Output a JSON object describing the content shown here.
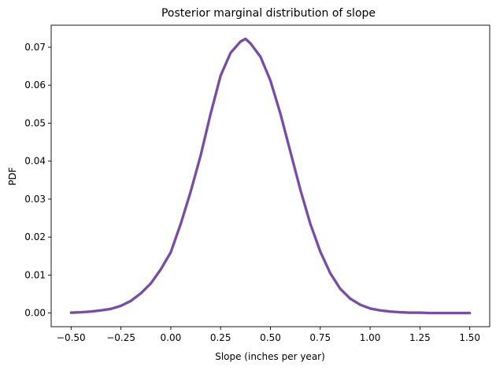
{
  "chart_data": {
    "type": "line",
    "title": "Posterior marginal distribution of slope",
    "xlabel": "Slope (inches per year)",
    "ylabel": "PDF",
    "xlim": [
      -0.6,
      1.6
    ],
    "ylim": [
      -0.0036,
      0.0758
    ],
    "xticks": [
      -0.5,
      -0.25,
      0.0,
      0.25,
      0.5,
      0.75,
      1.0,
      1.25,
      1.5
    ],
    "xtick_labels": [
      "−0.50",
      "−0.25",
      "0.00",
      "0.25",
      "0.50",
      "0.75",
      "1.00",
      "1.25",
      "1.50"
    ],
    "yticks": [
      0.0,
      0.01,
      0.02,
      0.03,
      0.04,
      0.05,
      0.06,
      0.07
    ],
    "ytick_labels": [
      "0.00",
      "0.01",
      "0.02",
      "0.03",
      "0.04",
      "0.05",
      "0.06",
      "0.07"
    ],
    "grid": false,
    "colors": {
      "line": "#7b4aa4",
      "line_under": "#5f7fa0"
    },
    "series": [
      {
        "x": [
          -0.5,
          -0.45,
          -0.4,
          -0.35,
          -0.3,
          -0.25,
          -0.2,
          -0.15,
          -0.1,
          -0.05,
          0.0,
          0.05,
          0.1,
          0.15,
          0.2,
          0.25,
          0.3,
          0.35,
          0.375,
          0.4,
          0.45,
          0.5,
          0.55,
          0.6,
          0.65,
          0.7,
          0.75,
          0.8,
          0.85,
          0.9,
          0.95,
          1.0,
          1.05,
          1.1,
          1.15,
          1.2,
          1.25,
          1.3,
          1.35,
          1.4,
          1.45,
          1.5
        ],
        "y": [
          0.0001,
          0.0002,
          0.0004,
          0.0007,
          0.0011,
          0.0019,
          0.0032,
          0.0052,
          0.0078,
          0.0115,
          0.016,
          0.0235,
          0.032,
          0.0415,
          0.0525,
          0.0625,
          0.0685,
          0.0715,
          0.0722,
          0.071,
          0.0675,
          0.0612,
          0.0525,
          0.0425,
          0.0325,
          0.0235,
          0.0162,
          0.0105,
          0.0064,
          0.0038,
          0.0022,
          0.0012,
          0.0007,
          0.0004,
          0.0002,
          0.0001,
          0.0001,
          0.0,
          0.0,
          0.0,
          0.0,
          0.0
        ]
      }
    ]
  }
}
